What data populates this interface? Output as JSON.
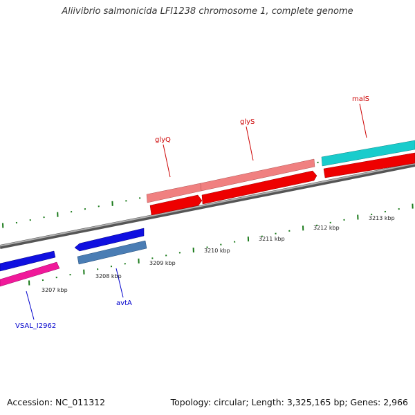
{
  "title": "Aliivibrio salmonicida LFI1238 chromosome 1, complete genome",
  "footer": {
    "accession": "Accession: NC_011312",
    "stats": "Topology: circular; Length: 3,325,165 bp; Genes: 2,966"
  },
  "ticks": [
    "3207 kbp",
    "3208 kbp",
    "3209 kbp",
    "3210 kbp",
    "3211 kbp",
    "3212 kbp",
    "3213 kbp"
  ],
  "genes": [
    {
      "label": "VSAL_I2962",
      "color": "#0000cc"
    },
    {
      "label": "avtA",
      "color": "#0000cc"
    },
    {
      "label": "glyQ",
      "color": "#cc0000"
    },
    {
      "label": "glyS",
      "color": "#cc0000"
    },
    {
      "label": "malS",
      "color": "#cc0000"
    }
  ],
  "colors": {
    "backbone": "#808080",
    "blue_cds": "#1010e0",
    "pink_cds": "#f0199a",
    "steel_cds": "#4a7db4",
    "red_cds": "#ee0000",
    "salmon_cds": "#f08080",
    "cyan_cds": "#19cccc",
    "tick_marks": "#1a7a1a"
  }
}
